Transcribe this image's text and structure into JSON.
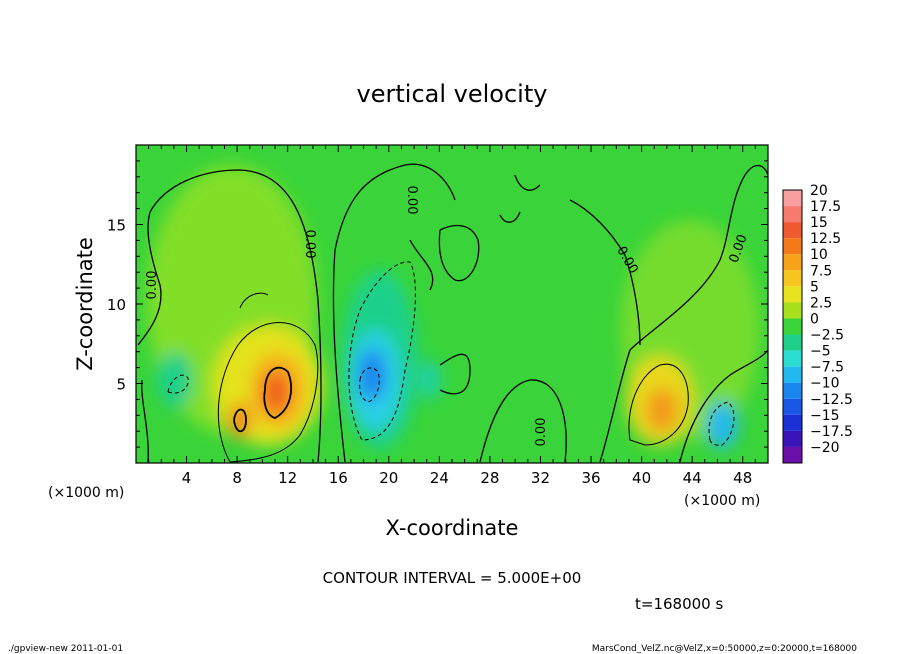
{
  "chart_data": {
    "type": "heatmap",
    "title": "vertical velocity",
    "xlabel": "X-coordinate",
    "ylabel": "Z-coordinate",
    "x_unit_left": "(×1000 m)",
    "x_unit_right": "(×1000 m)",
    "xlim": [
      0,
      50
    ],
    "ylim": [
      0,
      20
    ],
    "x_ticks": [
      4,
      8,
      12,
      16,
      20,
      24,
      28,
      32,
      36,
      40,
      44,
      48
    ],
    "y_ticks": [
      5,
      10,
      15
    ],
    "colorbar": {
      "levels": [
        20,
        17.5,
        15,
        12.5,
        10,
        7.5,
        5,
        2.5,
        0,
        -2.5,
        -5,
        -7.5,
        -10,
        -12.5,
        -15,
        -17.5,
        -20
      ],
      "labels": [
        "20",
        "17.5",
        "15",
        "12.5",
        "10",
        "7.5",
        "5",
        "2.5",
        "0",
        "−2.5",
        "−5",
        "−7.5",
        "−10",
        "−12.5",
        "−15",
        "−17.5",
        "−20"
      ],
      "colors": [
        "#f8a0a0",
        "#f57b6e",
        "#f05a32",
        "#f4791a",
        "#f7a21b",
        "#f6c51f",
        "#e8e41f",
        "#a8e01c",
        "#3ad43a",
        "#1fd08b",
        "#2adcd2",
        "#22b9ef",
        "#1c86ef",
        "#1b58e6",
        "#1a2fd4",
        "#3a14b8",
        "#6a10a8"
      ]
    },
    "contour_labels": [
      {
        "text": "0.00",
        "x": 1.5,
        "z": 11.0
      },
      {
        "text": "0.00",
        "x": 13.3,
        "z": 14.0
      },
      {
        "text": "0.00",
        "x": 21.3,
        "z": 16.9
      },
      {
        "text": "0.00",
        "x": 32.0,
        "z": 2.0
      },
      {
        "text": "0.00",
        "x": 38.3,
        "z": 13.0
      },
      {
        "text": "0.00",
        "x": 46.5,
        "z": 13.9
      }
    ],
    "contour_interval_text": "CONTOUR INTERVAL = 5.000E+00",
    "time_text": "t=168000 s"
  },
  "footer": {
    "left": "./gpview-new  2011-01-01",
    "right": "MarsCond_VelZ.nc@VelZ,x=0:50000,z=0:20000,t=168000"
  }
}
